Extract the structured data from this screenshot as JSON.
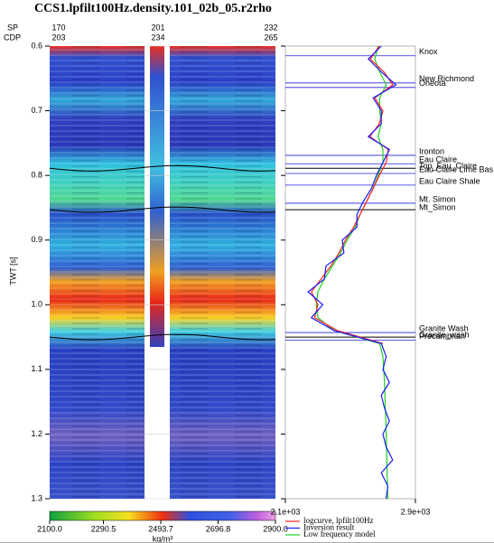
{
  "title": "CCS1.lpfilt100Hz.density.101_02b_05.r2rho",
  "header": {
    "sp_label": "SP",
    "sp_values": [
      170,
      201,
      232
    ],
    "cdp_label": "CDP",
    "cdp_values": [
      203,
      234,
      265
    ]
  },
  "section": {
    "ylabel": "TWT [s]",
    "ylim": [
      0.6,
      1.3
    ],
    "yticks": [
      0.6,
      0.7,
      0.8,
      0.9,
      {
        "value": 1,
        "label": "1.0"
      },
      1.1,
      1.2,
      1.3
    ]
  },
  "colorbar": {
    "xlim": [
      2100,
      2900
    ],
    "ticks": [
      {
        "value": 2100,
        "label": "2100.0"
      },
      {
        "value": 2290.5,
        "label": "2290.5"
      },
      {
        "value": 2493.7,
        "label": "2493.7"
      },
      {
        "value": 2696.8,
        "label": "2696.8"
      },
      {
        "value": 2900,
        "label": "2900.0"
      }
    ],
    "unit": "kg/m³"
  },
  "log_panel": {
    "xlim": [
      2100,
      2900
    ],
    "xticks": [
      {
        "value": 2100,
        "label": "2.1e+03"
      },
      {
        "value": 2900,
        "label": "2.9e+03"
      }
    ],
    "t": [
      0.6,
      0.62,
      0.64,
      0.66,
      0.68,
      0.7,
      0.72,
      0.74,
      0.76,
      0.78,
      0.8,
      0.82,
      0.84,
      0.86,
      0.88,
      0.9,
      0.92,
      0.94,
      0.96,
      0.98,
      1.0,
      1.02,
      1.04,
      1.06,
      1.08,
      1.1,
      1.12,
      1.14,
      1.16,
      1.18,
      1.2,
      1.22,
      1.24,
      1.26,
      1.28,
      1.3
    ],
    "series": [
      {
        "name": "logcurve, lpfilt100Hz",
        "color": "#ff2020",
        "values": [
          2678,
          2622,
          2706,
          2761,
          2650,
          2700,
          2678,
          2620,
          2733,
          2720,
          2678,
          2640,
          2600,
          2560,
          2520,
          2470,
          2430,
          2380,
          2320,
          2260,
          2300,
          2280,
          2420,
          2700,
          null,
          null,
          null,
          null,
          null,
          null,
          null,
          null,
          null,
          null,
          null,
          null
        ]
      },
      {
        "name": "Inversion result",
        "color": "#1a1aff",
        "values": [
          2690,
          2610,
          2690,
          2780,
          2640,
          2690,
          2690,
          2610,
          2740,
          2700,
          2660,
          2630,
          2580,
          2540,
          2540,
          2450,
          2460,
          2350,
          2340,
          2240,
          2330,
          2260,
          2400,
          2690,
          2720,
          2700,
          2740,
          2690,
          2710,
          2740,
          2700,
          2720,
          2760,
          2690,
          2730,
          2720
        ]
      },
      {
        "name": "Low frequency model",
        "color": "#20d020",
        "values": [
          2670,
          2650,
          2680,
          2720,
          2680,
          2680,
          2690,
          2670,
          2700,
          2700,
          2670,
          2640,
          2600,
          2560,
          2530,
          2480,
          2440,
          2390,
          2340,
          2300,
          2290,
          2300,
          2400,
          2680,
          2700,
          2705,
          2710,
          2712,
          2715,
          2718,
          2720,
          2722,
          2724,
          2726,
          2728,
          2730
        ]
      }
    ],
    "horizons": [
      {
        "name": "Knox",
        "t": 0.615,
        "color": "#2222dd"
      },
      {
        "name": "New Richmond",
        "t": 0.657,
        "color": "#2222dd"
      },
      {
        "name": "Oneota",
        "t": 0.664,
        "color": "#2222dd"
      },
      {
        "name": "Ironton",
        "t": 0.769,
        "color": "#2222dd"
      },
      {
        "name": "Eau Claire",
        "t": 0.782,
        "color": "#2222dd"
      },
      {
        "name": "Top_Eau_Claire",
        "t": 0.789,
        "color": "#000000"
      },
      {
        "name": "Eau Claire Lime Bas",
        "t": 0.797,
        "color": "#2222dd"
      },
      {
        "name": "Eau Claire Shale",
        "t": 0.815,
        "color": "#2222dd"
      },
      {
        "name": "Mt. Simon",
        "t": 0.843,
        "color": "#2222dd"
      },
      {
        "name": "Mt_Simon",
        "t": 0.853,
        "color": "#000000"
      },
      {
        "name": "Granite Wash",
        "t": 1.043,
        "color": "#2222dd"
      },
      {
        "name": "Granite_wash",
        "t": 1.05,
        "color": "#000000"
      },
      {
        "name": "Precambrian",
        "t": 1.055,
        "color": "#2222dd"
      }
    ]
  }
}
